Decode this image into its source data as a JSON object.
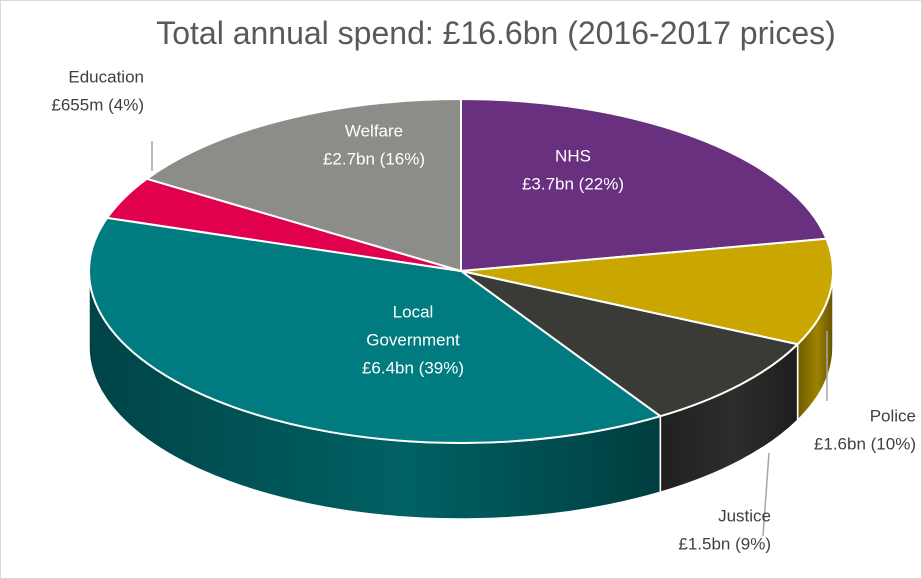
{
  "chart_data": {
    "type": "pie",
    "title": "Total annual spend: £16.6bn (2016-2017 prices)",
    "slices": [
      {
        "name": "NHS",
        "value_label": "£3.7bn (22%)",
        "value": 3.7,
        "percent": 22,
        "color": "#68307e"
      },
      {
        "name": "Police",
        "value_label": "£1.6bn (10%)",
        "value": 1.6,
        "percent": 10,
        "color": "#c9a700"
      },
      {
        "name": "Justice",
        "value_label": "£1.5bn (9%)",
        "value": 1.5,
        "percent": 9,
        "color": "#3a3a37"
      },
      {
        "name": "Local Government",
        "value_label": "£6.4bn (39%)",
        "value": 6.4,
        "percent": 39,
        "color": "#007c80"
      },
      {
        "name": "Education",
        "value_label": "£655m (4%)",
        "value": 0.655,
        "percent": 4,
        "color": "#e0004e"
      },
      {
        "name": "Welfare",
        "value_label": "£2.7bn (16%)",
        "value": 2.7,
        "percent": 16,
        "color": "#8c8c89"
      }
    ]
  }
}
